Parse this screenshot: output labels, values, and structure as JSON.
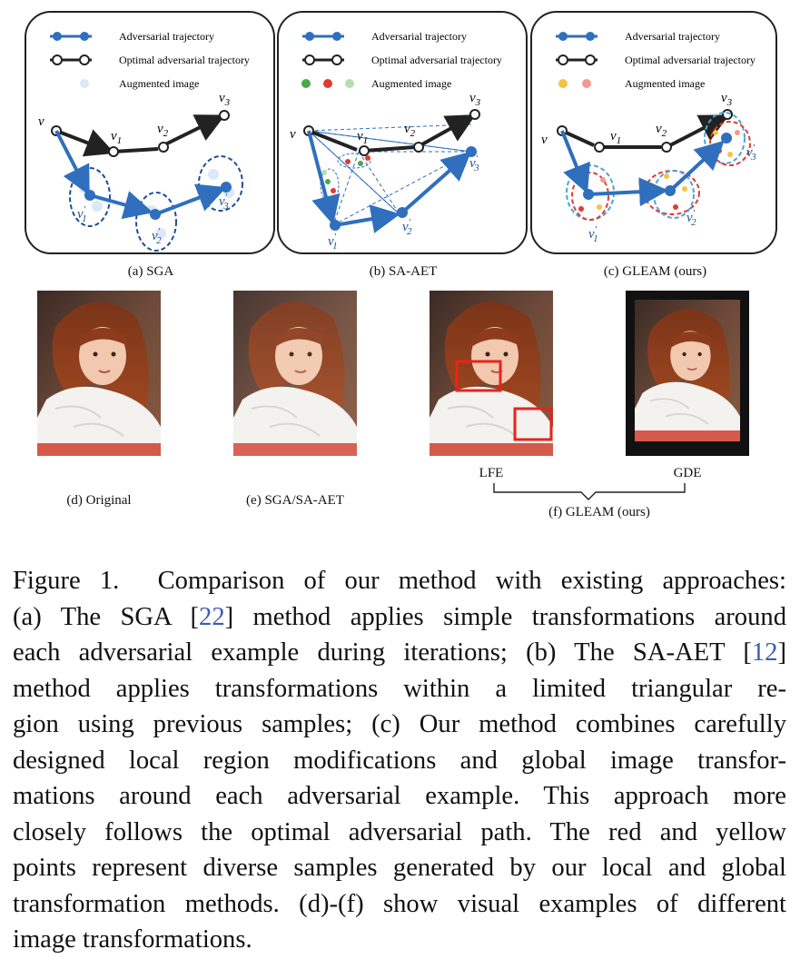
{
  "legend": {
    "adversarial": "Adversarial trajectory",
    "optimal": "Optimal adversarial trajectory",
    "augmented": "Augmented image"
  },
  "node_labels": {
    "v": "v",
    "v1": "v",
    "v2": "v",
    "v3": "v",
    "sub1": "1",
    "sub2": "2",
    "sub3": "3",
    "prime": "′"
  },
  "panels": [
    {
      "caption": "(a) SGA"
    },
    {
      "caption": "(b) SA-AET"
    },
    {
      "caption": "(c) GLEAM (ours)"
    }
  ],
  "images": {
    "original": "(d) Original",
    "sga": "(e) SGA/SA-AET",
    "lfe": "LFE",
    "gde": "GDE",
    "gleam": "(f) GLEAM (ours)"
  },
  "caption": {
    "label": "Figure 1.",
    "lines": [
      "Comparison of our method with existing approaches:",
      "(a) The SGA [22] method applies simple transformations around",
      "each adversarial example during iterations; (b) The SA-AET [12]",
      "method applies transformations within a limited triangular re-",
      "gion using previous samples; (c) Our method combines carefully",
      "designed local region modifications and global image transfor-",
      "mations around each adversarial example. This approach more",
      "closely follows the optimal adversarial path. The red and yellow",
      "points represent diverse samples generated by our local and global",
      "transformation methods. (d)-(f) show visual examples of different",
      "image transformations."
    ],
    "ref_sga": "22",
    "ref_saaet": "12"
  },
  "colors": {
    "blue": "#2f6fbd",
    "dark_blue": "#1c4f96",
    "light_blue": "#dbe8f7",
    "black": "#222222",
    "red": "#e03c31",
    "yellow": "#f5c242",
    "green": "#4aa84a",
    "pink": "#f19a8f"
  }
}
